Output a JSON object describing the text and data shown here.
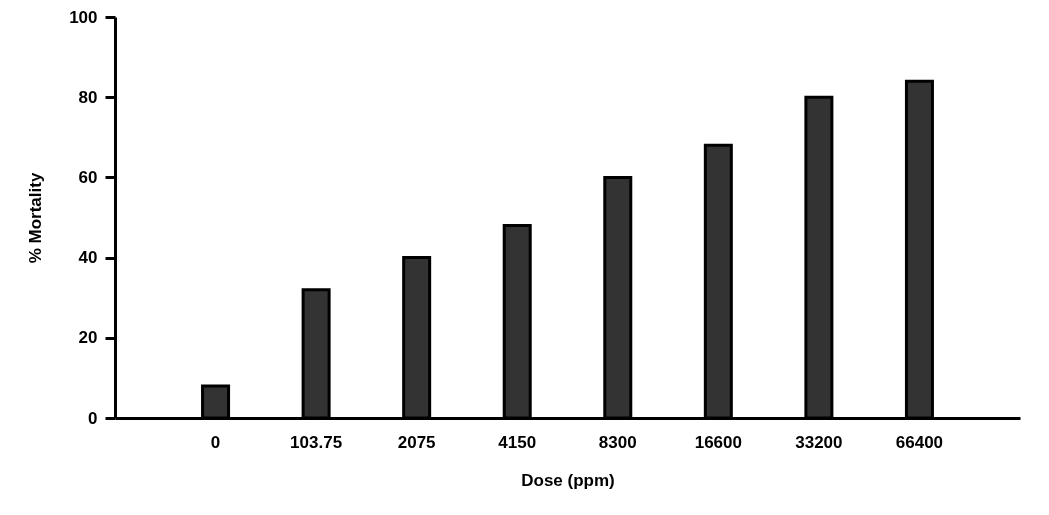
{
  "chart_data": {
    "type": "bar",
    "xlabel": "Dose (ppm)",
    "ylabel": "% Mortality",
    "categories": [
      "0",
      "103.75",
      "2075",
      "4150",
      "8300",
      "16600",
      "33200",
      "66400"
    ],
    "values": [
      8,
      32,
      40,
      48,
      60,
      68,
      80,
      84
    ],
    "color": "#333333",
    "ylim": [
      0,
      100
    ],
    "yticks": [
      0,
      20,
      40,
      60,
      80,
      100
    ]
  }
}
